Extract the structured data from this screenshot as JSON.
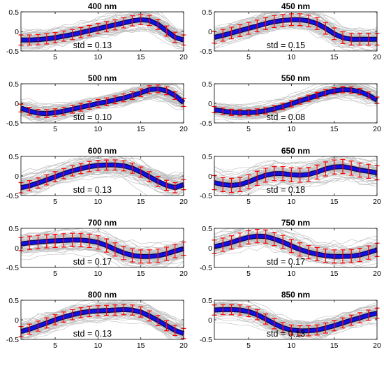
{
  "chart_data": [
    {
      "type": "line",
      "title": "400 nm",
      "annotation": "std = 0.13",
      "xlim": [
        1,
        20
      ],
      "ylim": [
        -0.5,
        0.5
      ],
      "xticks": [
        5,
        10,
        15,
        20
      ],
      "yticks": [
        -0.5,
        0,
        0.5
      ],
      "x": [
        1,
        2,
        3,
        4,
        5,
        6,
        7,
        8,
        9,
        10,
        11,
        12,
        13,
        14,
        15,
        16,
        17,
        18,
        19,
        20
      ],
      "series": [
        {
          "values": [
            -0.22,
            -0.22,
            -0.21,
            -0.19,
            -0.16,
            -0.12,
            -0.08,
            -0.03,
            0.02,
            0.07,
            0.12,
            0.17,
            0.22,
            0.27,
            0.3,
            0.28,
            0.18,
            0.01,
            -0.15,
            -0.22
          ],
          "std": 0.13
        }
      ]
    },
    {
      "type": "line",
      "title": "450 nm",
      "annotation": "std = 0.15",
      "xlim": [
        1,
        20
      ],
      "ylim": [
        -0.5,
        0.5
      ],
      "xticks": [
        5,
        10,
        15,
        20
      ],
      "yticks": [
        -0.5,
        0,
        0.5
      ],
      "x": [
        1,
        2,
        3,
        4,
        5,
        6,
        7,
        8,
        9,
        10,
        11,
        12,
        13,
        14,
        15,
        16,
        17,
        18,
        19,
        20
      ],
      "series": [
        {
          "values": [
            -0.15,
            -0.1,
            -0.04,
            0.02,
            0.08,
            0.14,
            0.2,
            0.25,
            0.28,
            0.3,
            0.3,
            0.27,
            0.2,
            0.08,
            -0.06,
            -0.16,
            -0.2,
            -0.2,
            -0.2,
            -0.2
          ],
          "std": 0.15
        }
      ]
    },
    {
      "type": "line",
      "title": "500 nm",
      "annotation": "std = 0.10",
      "xlim": [
        1,
        20
      ],
      "ylim": [
        -0.5,
        0.5
      ],
      "xticks": [
        5,
        10,
        15,
        20
      ],
      "yticks": [
        -0.5,
        0,
        0.5
      ],
      "x": [
        1,
        2,
        3,
        4,
        5,
        6,
        7,
        8,
        9,
        10,
        11,
        12,
        13,
        14,
        15,
        16,
        17,
        18,
        19,
        20
      ],
      "series": [
        {
          "values": [
            -0.12,
            -0.2,
            -0.25,
            -0.26,
            -0.24,
            -0.2,
            -0.15,
            -0.1,
            -0.05,
            0.0,
            0.04,
            0.09,
            0.14,
            0.2,
            0.27,
            0.35,
            0.37,
            0.32,
            0.2,
            0.02
          ],
          "std": 0.1
        }
      ]
    },
    {
      "type": "line",
      "title": "550 nm",
      "annotation": "std = 0.08",
      "xlim": [
        1,
        20
      ],
      "ylim": [
        -0.5,
        0.5
      ],
      "xticks": [
        5,
        10,
        15,
        20
      ],
      "yticks": [
        -0.5,
        0,
        0.5
      ],
      "x": [
        1,
        2,
        3,
        4,
        5,
        6,
        7,
        8,
        9,
        10,
        11,
        12,
        13,
        14,
        15,
        16,
        17,
        18,
        19,
        20
      ],
      "series": [
        {
          "values": [
            -0.16,
            -0.2,
            -0.23,
            -0.24,
            -0.24,
            -0.22,
            -0.19,
            -0.14,
            -0.08,
            -0.01,
            0.06,
            0.13,
            0.2,
            0.27,
            0.32,
            0.35,
            0.34,
            0.3,
            0.21,
            0.08
          ],
          "std": 0.08
        }
      ]
    },
    {
      "type": "line",
      "title": "600 nm",
      "annotation": "std = 0.13",
      "xlim": [
        1,
        20
      ],
      "ylim": [
        -0.5,
        0.5
      ],
      "xticks": [
        5,
        10,
        15,
        20
      ],
      "yticks": [
        -0.5,
        0,
        0.5
      ],
      "x": [
        1,
        2,
        3,
        4,
        5,
        6,
        7,
        8,
        9,
        10,
        11,
        12,
        13,
        14,
        15,
        16,
        17,
        18,
        19,
        20
      ],
      "series": [
        {
          "values": [
            -0.3,
            -0.25,
            -0.18,
            -0.1,
            -0.02,
            0.06,
            0.13,
            0.19,
            0.24,
            0.27,
            0.28,
            0.28,
            0.26,
            0.2,
            0.1,
            -0.02,
            -0.14,
            -0.24,
            -0.3,
            -0.22
          ],
          "std": 0.13
        }
      ]
    },
    {
      "type": "line",
      "title": "650 nm",
      "annotation": "std = 0.18",
      "xlim": [
        1,
        20
      ],
      "ylim": [
        -0.5,
        0.5
      ],
      "xticks": [
        5,
        10,
        15,
        20
      ],
      "yticks": [
        -0.5,
        0,
        0.5
      ],
      "x": [
        1,
        2,
        3,
        4,
        5,
        6,
        7,
        8,
        9,
        10,
        11,
        12,
        13,
        14,
        15,
        16,
        17,
        18,
        19,
        20
      ],
      "series": [
        {
          "values": [
            -0.17,
            -0.22,
            -0.24,
            -0.22,
            -0.15,
            -0.06,
            0.02,
            0.06,
            0.06,
            0.03,
            0.02,
            0.04,
            0.1,
            0.18,
            0.23,
            0.24,
            0.2,
            0.15,
            0.12,
            0.08
          ],
          "std": 0.18
        }
      ]
    },
    {
      "type": "line",
      "title": "700 nm",
      "annotation": "std = 0.17",
      "xlim": [
        1,
        20
      ],
      "ylim": [
        -0.5,
        0.5
      ],
      "xticks": [
        5,
        10,
        15,
        20
      ],
      "yticks": [
        -0.5,
        0,
        0.5
      ],
      "x": [
        1,
        2,
        3,
        4,
        5,
        6,
        7,
        8,
        9,
        10,
        11,
        12,
        13,
        14,
        15,
        16,
        17,
        18,
        19,
        20
      ],
      "series": [
        {
          "values": [
            0.1,
            0.13,
            0.15,
            0.17,
            0.18,
            0.19,
            0.2,
            0.2,
            0.18,
            0.14,
            0.06,
            -0.04,
            -0.13,
            -0.19,
            -0.22,
            -0.22,
            -0.2,
            -0.15,
            -0.08,
            -0.02
          ],
          "std": 0.17
        }
      ]
    },
    {
      "type": "line",
      "title": "750 nm",
      "annotation": "std = 0.17",
      "xlim": [
        1,
        20
      ],
      "ylim": [
        -0.5,
        0.5
      ],
      "xticks": [
        5,
        10,
        15,
        20
      ],
      "yticks": [
        -0.5,
        0,
        0.5
      ],
      "x": [
        1,
        2,
        3,
        4,
        5,
        6,
        7,
        8,
        9,
        10,
        11,
        12,
        13,
        14,
        15,
        16,
        17,
        18,
        19,
        20
      ],
      "series": [
        {
          "values": [
            0.03,
            0.08,
            0.14,
            0.21,
            0.27,
            0.3,
            0.29,
            0.23,
            0.15,
            0.05,
            -0.04,
            -0.11,
            -0.16,
            -0.2,
            -0.22,
            -0.22,
            -0.21,
            -0.18,
            -0.12,
            -0.05
          ],
          "std": 0.17
        }
      ]
    },
    {
      "type": "line",
      "title": "800 nm",
      "annotation": "std = 0.13",
      "xlim": [
        1,
        20
      ],
      "ylim": [
        -0.5,
        0.5
      ],
      "xticks": [
        5,
        10,
        15,
        20
      ],
      "yticks": [
        -0.5,
        0,
        0.5
      ],
      "x": [
        1,
        2,
        3,
        4,
        5,
        6,
        7,
        8,
        9,
        10,
        11,
        12,
        13,
        14,
        15,
        16,
        17,
        18,
        19,
        20
      ],
      "series": [
        {
          "values": [
            -0.3,
            -0.24,
            -0.16,
            -0.08,
            0.0,
            0.07,
            0.13,
            0.18,
            0.21,
            0.23,
            0.24,
            0.25,
            0.26,
            0.25,
            0.2,
            0.1,
            -0.02,
            -0.15,
            -0.27,
            -0.35
          ],
          "std": 0.13
        }
      ]
    },
    {
      "type": "line",
      "title": "850 nm",
      "annotation": "std = 0.13",
      "xlim": [
        1,
        20
      ],
      "ylim": [
        -0.5,
        0.5
      ],
      "xticks": [
        5,
        10,
        15,
        20
      ],
      "yticks": [
        -0.5,
        0,
        0.5
      ],
      "x": [
        1,
        2,
        3,
        4,
        5,
        6,
        7,
        8,
        9,
        10,
        11,
        12,
        13,
        14,
        15,
        16,
        17,
        18,
        19,
        20
      ],
      "series": [
        {
          "values": [
            0.25,
            0.26,
            0.26,
            0.25,
            0.21,
            0.13,
            0.02,
            -0.1,
            -0.2,
            -0.26,
            -0.28,
            -0.28,
            -0.26,
            -0.21,
            -0.15,
            -0.08,
            -0.01,
            0.05,
            0.12,
            0.17
          ],
          "std": 0.13
        }
      ]
    }
  ],
  "colors": {
    "mean_line": "#1010e0",
    "mean_shadow": "#0a0a50",
    "error_bar": "#ff0000",
    "background_curves": "#bcbcbc",
    "axes": "#000000"
  }
}
